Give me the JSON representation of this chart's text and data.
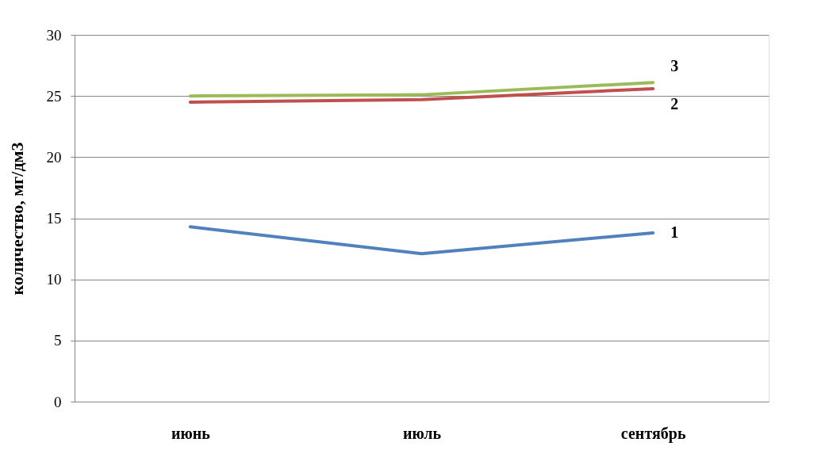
{
  "chart_data": {
    "type": "line",
    "ylabel": "количество, мг/дм3",
    "categories": [
      "июнь",
      "июль",
      "сентябрь"
    ],
    "series": [
      {
        "name": "1",
        "color": "#4f81bd",
        "values": [
          14.3,
          12.1,
          13.8
        ]
      },
      {
        "name": "2",
        "color": "#c0504d",
        "values": [
          24.5,
          24.7,
          25.6
        ]
      },
      {
        "name": "3",
        "color": "#9bbb59",
        "values": [
          25.0,
          25.1,
          26.1
        ]
      }
    ],
    "ylim": [
      0,
      30
    ],
    "yticks": [
      0,
      5,
      10,
      15,
      20,
      25,
      30
    ],
    "grid": "y",
    "legend": false,
    "marker": "none",
    "line_style": "solid"
  }
}
